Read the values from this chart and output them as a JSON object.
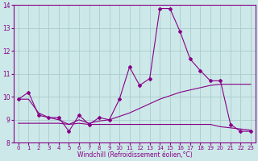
{
  "x": [
    0,
    1,
    2,
    3,
    4,
    5,
    6,
    7,
    8,
    9,
    10,
    11,
    12,
    13,
    14,
    15,
    16,
    17,
    18,
    19,
    20,
    21,
    22,
    23
  ],
  "line_jagged": [
    9.9,
    10.2,
    9.2,
    9.1,
    9.1,
    8.5,
    9.2,
    8.8,
    9.1,
    9.0,
    9.9,
    11.3,
    10.5,
    10.8,
    13.85,
    13.85,
    12.85,
    11.65,
    11.15,
    10.7,
    10.7,
    8.8,
    8.5,
    8.5
  ],
  "line_rising": [
    9.9,
    9.9,
    9.3,
    9.1,
    9.0,
    8.8,
    9.0,
    8.85,
    8.95,
    9.0,
    9.15,
    9.3,
    9.5,
    9.7,
    9.9,
    10.05,
    10.2,
    10.3,
    10.4,
    10.5,
    10.55,
    10.55,
    10.55,
    10.55
  ],
  "line_flat": [
    8.85,
    8.85,
    8.85,
    8.85,
    8.85,
    8.8,
    8.85,
    8.8,
    8.8,
    8.8,
    8.8,
    8.8,
    8.8,
    8.8,
    8.8,
    8.8,
    8.8,
    8.8,
    8.8,
    8.8,
    8.7,
    8.65,
    8.6,
    8.55
  ],
  "line_color": "#880088",
  "bg_color": "#cce8e8",
  "grid_color": "#aacccc",
  "xlabel": "Windchill (Refroidissement éolien,°C)",
  "ylim": [
    8,
    14
  ],
  "xlim": [
    0,
    23
  ],
  "yticks": [
    8,
    9,
    10,
    11,
    12,
    13,
    14
  ],
  "xticks": [
    0,
    1,
    2,
    3,
    4,
    5,
    6,
    7,
    8,
    9,
    10,
    11,
    12,
    13,
    14,
    15,
    16,
    17,
    18,
    19,
    20,
    21,
    22,
    23
  ]
}
